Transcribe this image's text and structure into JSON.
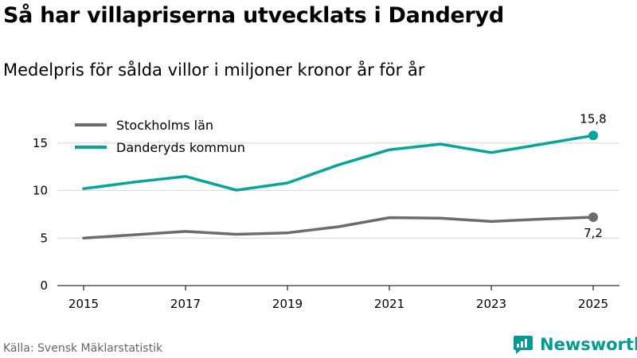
{
  "header": {
    "title": "Så har villapriserna utvecklats i Danderyd",
    "subtitle": "Medelpris för sålda villor i miljoner kronor år för år"
  },
  "footer": {
    "source": "Källa: Svensk Mäklarstatistik",
    "brand": "Newsworthy"
  },
  "colors": {
    "stockholm": "#6d6b70",
    "danderyd": "#05a598",
    "grid": "#d4d4d4",
    "axis": "#333333"
  },
  "chart_data": {
    "type": "line",
    "title": "Så har villapriserna utvecklats i Danderyd",
    "subtitle": "Medelpris för sålda villor i miljoner kronor år för år",
    "x": [
      2015,
      2016,
      2017,
      2018,
      2019,
      2020,
      2021,
      2022,
      2023,
      2024,
      2025
    ],
    "x_ticks": [
      "2015",
      "2017",
      "2019",
      "2021",
      "2023",
      "2025"
    ],
    "y_ticks": [
      "0",
      "5",
      "10",
      "15"
    ],
    "ylim": [
      0,
      17.5
    ],
    "xlabel": "",
    "ylabel": "",
    "grid": true,
    "legend_position": "top-left",
    "series": [
      {
        "name": "Stockholms län",
        "color": "#6d6b70",
        "values": [
          5.0,
          5.35,
          5.7,
          5.4,
          5.55,
          6.2,
          7.15,
          7.1,
          6.75,
          7.0,
          7.2
        ],
        "end_label": "7,2"
      },
      {
        "name": "Danderyds kommun",
        "color": "#05a598",
        "values": [
          10.2,
          10.9,
          11.5,
          10.05,
          10.8,
          12.7,
          14.3,
          14.9,
          14.0,
          14.9,
          15.8
        ],
        "end_label": "15,8"
      }
    ]
  }
}
